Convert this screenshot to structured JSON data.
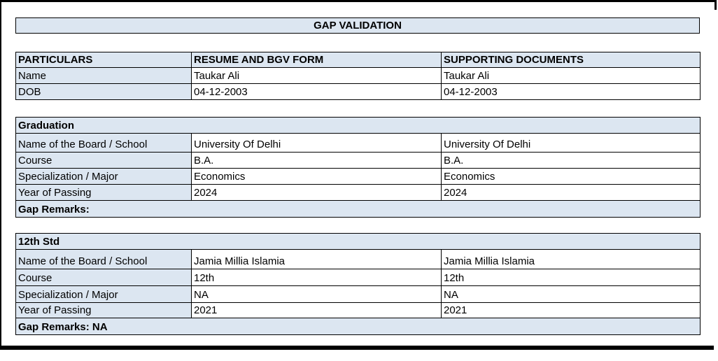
{
  "colors": {
    "cell_fill": "#dce6f1",
    "border": "#000000",
    "page_background": "#ffffff",
    "text": "#000000"
  },
  "title": "GAP VALIDATION",
  "comparison_table": {
    "headers": [
      "PARTICULARS",
      "RESUME AND BGV FORM",
      "SUPPORTING DOCUMENTS"
    ],
    "rows": [
      {
        "label": "Name",
        "resume_and_bgv_form": "Taukar Ali",
        "supporting_documents": "Taukar Ali"
      },
      {
        "label": "DOB",
        "resume_and_bgv_form": "04-12-2003",
        "supporting_documents": "04-12-2003"
      }
    ]
  },
  "sections": [
    {
      "heading": "Graduation",
      "rows": [
        {
          "label": "Name of the Board / School",
          "resume_and_bgv_form": "University Of Delhi",
          "supporting_documents": "University Of Delhi"
        },
        {
          "label": "Course",
          "resume_and_bgv_form": "B.A.",
          "supporting_documents": "B.A."
        },
        {
          "label": "Specialization / Major",
          "resume_and_bgv_form": "Economics",
          "supporting_documents": "Economics"
        },
        {
          "label": "Year of Passing",
          "resume_and_bgv_form": "2024",
          "supporting_documents": "2024"
        }
      ],
      "gap_remarks": "Gap Remarks:"
    },
    {
      "heading": "12th Std",
      "rows": [
        {
          "label": "Name of the Board / School",
          "resume_and_bgv_form": "Jamia Millia Islamia",
          "supporting_documents": "Jamia Millia Islamia"
        },
        {
          "label": "Course",
          "resume_and_bgv_form": "12th",
          "supporting_documents": "12th"
        },
        {
          "label": "Specialization / Major",
          "resume_and_bgv_form": "NA",
          "supporting_documents": "NA"
        },
        {
          "label": "Year of Passing",
          "resume_and_bgv_form": "2021",
          "supporting_documents": "2021"
        }
      ],
      "gap_remarks": "Gap Remarks: NA"
    }
  ]
}
